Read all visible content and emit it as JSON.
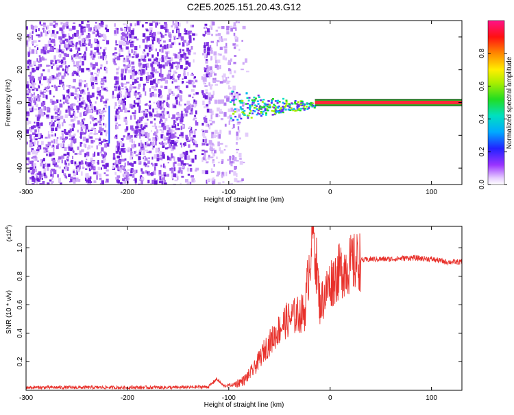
{
  "title": "C2E5.2025.151.20.43.G12",
  "colors": {
    "snr_line": "#e8302a",
    "signal_band": "#ff2a3a",
    "noise_purple": "#7a22e0",
    "axis": "#000000"
  },
  "chart_data": [
    {
      "type": "heatmap",
      "xlabel": "Height of straight line (km)",
      "ylabel": "Frequency (Hz)",
      "xlim": [
        -300,
        130
      ],
      "ylim": [
        -50,
        50
      ],
      "x_ticks": [
        -300,
        -200,
        -100,
        0,
        100
      ],
      "y_ticks": [
        -40,
        -20,
        0,
        20,
        40
      ],
      "x_tick_labels": [
        "-300",
        "-200",
        "-100",
        "0",
        "100"
      ],
      "y_tick_labels": [
        "-40",
        "-20",
        "0",
        "20",
        "40"
      ],
      "colorbar": {
        "label": "Normalized spectral amplitude",
        "range": [
          0,
          1
        ],
        "ticks": [
          0.0,
          0.2,
          0.4,
          0.6,
          0.8
        ],
        "tick_labels": [
          "0.0",
          "0.2",
          "0.4",
          "0.6",
          "0.8"
        ],
        "colormap": "rainbow (white-violet-blue-cyan-green-yellow-red-magenta)"
      },
      "features": {
        "noise_region_x": [
          -300,
          -90
        ],
        "noise_amplitude": 0.15,
        "transition_region_x": [
          -100,
          -15
        ],
        "signal_band": {
          "x": [
            -15,
            130
          ],
          "frequency": 0,
          "half_width": 2,
          "amplitude": 0.95
        },
        "vertical_gaps_x": [
          -218,
          -130
        ]
      }
    },
    {
      "type": "line",
      "xlabel": "Height of straight line (km)",
      "ylabel": "SNR (10 * v/v)",
      "y_multiplier": "(x10",
      "y_multiplier_exp": "4",
      "y_multiplier_close": ")",
      "xlim": [
        -300,
        130
      ],
      "ylim": [
        0,
        1.15
      ],
      "x_ticks": [
        -300,
        -200,
        -100,
        0,
        100
      ],
      "y_ticks": [
        0.2,
        0.4,
        0.6,
        0.8,
        1.0
      ],
      "x_tick_labels": [
        "-300",
        "-200",
        "-100",
        "0",
        "100"
      ],
      "y_tick_labels": [
        "0.2",
        "0.4",
        "0.6",
        "0.8",
        "1.0"
      ],
      "series": [
        {
          "x": [
            -300,
            -250,
            -200,
            -150,
            -120,
            -112,
            -105,
            -95,
            -85,
            -75,
            -65,
            -55,
            -45,
            -35,
            -25,
            -17,
            -10,
            0,
            10,
            20,
            30,
            40,
            60,
            80,
            100,
            115,
            130
          ],
          "y": [
            0.02,
            0.02,
            0.02,
            0.02,
            0.025,
            0.08,
            0.03,
            0.04,
            0.07,
            0.15,
            0.28,
            0.38,
            0.48,
            0.52,
            0.55,
            1.15,
            0.6,
            0.75,
            0.84,
            0.88,
            0.91,
            0.92,
            0.92,
            0.93,
            0.92,
            0.9,
            0.9
          ]
        }
      ]
    }
  ]
}
